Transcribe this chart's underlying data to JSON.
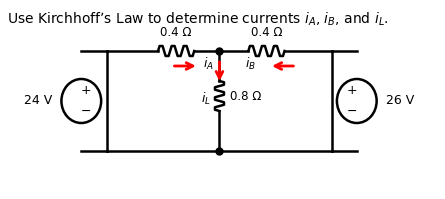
{
  "title": "Use Kirchhoff’s Law to determine currents $i_A$, $i_B$, and $i_L$.",
  "title_fontsize": 10,
  "bg_color": "#ffffff",
  "line_color": "#000000",
  "arrow_color": "#ff0000",
  "resistor_color": "#000000",
  "node_color": "#000000",
  "label_left_voltage": "24 V",
  "label_right_voltage": "26 V",
  "label_r_left": "0.4 Ω",
  "label_r_right": "0.4 Ω",
  "label_r_center": "0.8 Ω",
  "label_iA": "$i_A$",
  "label_iB": "$i_B$",
  "label_iL": "$i_L$"
}
